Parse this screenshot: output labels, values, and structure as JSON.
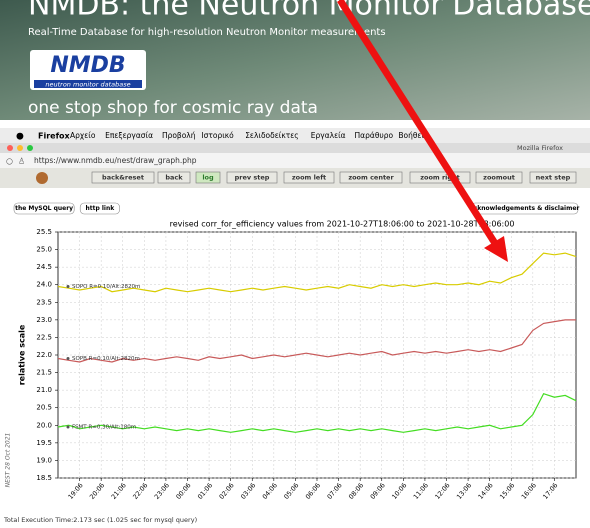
{
  "banner": {
    "title": "NMDB: the Neutron Monitor Database",
    "subtitle": "Real-Time Database for high-resolution Neutron Monitor measurements",
    "logo": "NMDB",
    "logo_caption": "neutron monitor database",
    "slogan": "one stop shop for cosmic ray data"
  },
  "menubar": {
    "app": "Firefox",
    "items": [
      "Αρχείο",
      "Επεξεργασία",
      "Προβολή",
      "Ιστορικό",
      "Σελιδοδείκτες",
      "Εργαλεία",
      "Παράθυρο",
      "Βοήθεια"
    ]
  },
  "window": {
    "title": "Mozilla Firefox",
    "url": "https://www.nmdb.eu/nest/draw_graph.php"
  },
  "toolbar": {
    "buttons": [
      "back&reset",
      "back",
      "log",
      "prev step",
      "zoom left",
      "zoom center",
      "zoom right",
      "zoomout",
      "next step"
    ],
    "left_links": [
      "the MySQL query",
      "http link"
    ],
    "right_link": "acknowledgements & disclaimer"
  },
  "chart_data": {
    "type": "line",
    "title": "revised corr_for_efficiency values from 2021-10-27T18:06:00 to 2021-10-28T18:06:00",
    "y_label": "relative scale",
    "side_note": "NEST 28 Oct 2021",
    "x": [
      "18:06",
      "18:36",
      "19:06",
      "19:36",
      "20:06",
      "20:36",
      "21:06",
      "21:36",
      "22:06",
      "22:36",
      "23:06",
      "23:36",
      "00:06",
      "00:36",
      "01:06",
      "01:36",
      "02:06",
      "02:36",
      "03:06",
      "03:36",
      "04:06",
      "04:36",
      "05:06",
      "05:36",
      "06:06",
      "06:36",
      "07:06",
      "07:36",
      "08:06",
      "08:36",
      "09:06",
      "09:36",
      "10:06",
      "10:36",
      "11:06",
      "11:36",
      "12:06",
      "12:36",
      "13:06",
      "13:36",
      "14:06",
      "14:36",
      "15:06",
      "15:36",
      "16:06",
      "16:36",
      "17:06",
      "17:36",
      "18:06"
    ],
    "xticks": [
      "19:06",
      "20:06",
      "21:06",
      "22:06",
      "23:06",
      "00:06",
      "01:06",
      "02:06",
      "03:06",
      "04:06",
      "05:06",
      "06:06",
      "07:06",
      "08:06",
      "09:06",
      "10:06",
      "11:06",
      "12:06",
      "13:06",
      "14:06",
      "15:06",
      "16:06",
      "17:06"
    ],
    "ylim": [
      18.5,
      25.5
    ],
    "yticks": [
      18.5,
      {
        "value": 19,
        "label": "19.0"
      },
      19.5,
      {
        "value": 20,
        "label": "20.0"
      },
      20.5,
      {
        "value": 21,
        "label": "21.0"
      },
      21.5,
      {
        "value": 22,
        "label": "22.0"
      },
      22.5,
      {
        "value": 23,
        "label": "23.0"
      },
      23.5,
      {
        "value": 24,
        "label": "24.0"
      },
      24.5,
      {
        "value": 25,
        "label": "25.0"
      },
      25.5
    ],
    "grid": true,
    "series": [
      {
        "name": "SOPO R=0.10/Alt:2820m",
        "color": "#d8cc00",
        "values": [
          23.95,
          23.9,
          23.85,
          23.9,
          23.95,
          23.8,
          23.85,
          23.9,
          23.85,
          23.8,
          23.9,
          23.85,
          23.8,
          23.85,
          23.9,
          23.85,
          23.8,
          23.85,
          23.9,
          23.85,
          23.9,
          23.95,
          23.9,
          23.85,
          23.9,
          23.95,
          23.9,
          24.0,
          23.95,
          23.9,
          24.0,
          23.95,
          24.0,
          23.95,
          24.0,
          24.05,
          24.0,
          24.0,
          24.05,
          24.0,
          24.1,
          24.05,
          24.2,
          24.3,
          24.6,
          24.9,
          24.85,
          24.9,
          24.8
        ]
      },
      {
        "name": "SOPB R=0.10/Alt:2820m",
        "color": "#c85a5a",
        "values": [
          21.9,
          21.85,
          21.8,
          21.9,
          21.85,
          21.8,
          21.9,
          21.85,
          21.9,
          21.85,
          21.9,
          21.95,
          21.9,
          21.85,
          21.95,
          21.9,
          21.95,
          22.0,
          21.9,
          21.95,
          22.0,
          21.95,
          22.0,
          22.05,
          22.0,
          21.95,
          22.0,
          22.05,
          22.0,
          22.05,
          22.1,
          22.0,
          22.05,
          22.1,
          22.05,
          22.1,
          22.05,
          22.1,
          22.15,
          22.1,
          22.15,
          22.1,
          22.2,
          22.3,
          22.7,
          22.9,
          22.95,
          23.0,
          23.0
        ]
      },
      {
        "name": "FSMT R=0.30/Alt:180m",
        "color": "#44dd22",
        "values": [
          19.95,
          20.0,
          19.9,
          19.95,
          20.0,
          19.95,
          19.9,
          19.95,
          19.9,
          19.95,
          19.9,
          19.85,
          19.9,
          19.85,
          19.9,
          19.85,
          19.8,
          19.85,
          19.9,
          19.85,
          19.9,
          19.85,
          19.8,
          19.85,
          19.9,
          19.85,
          19.9,
          19.85,
          19.9,
          19.85,
          19.9,
          19.85,
          19.8,
          19.85,
          19.9,
          19.85,
          19.9,
          19.95,
          19.9,
          19.95,
          20.0,
          19.9,
          19.95,
          20.0,
          20.3,
          20.9,
          20.8,
          20.85,
          20.7
        ]
      }
    ]
  },
  "footer": {
    "text": "Total Execution Time:2.173 sec (1.025 sec for mysql query)"
  }
}
